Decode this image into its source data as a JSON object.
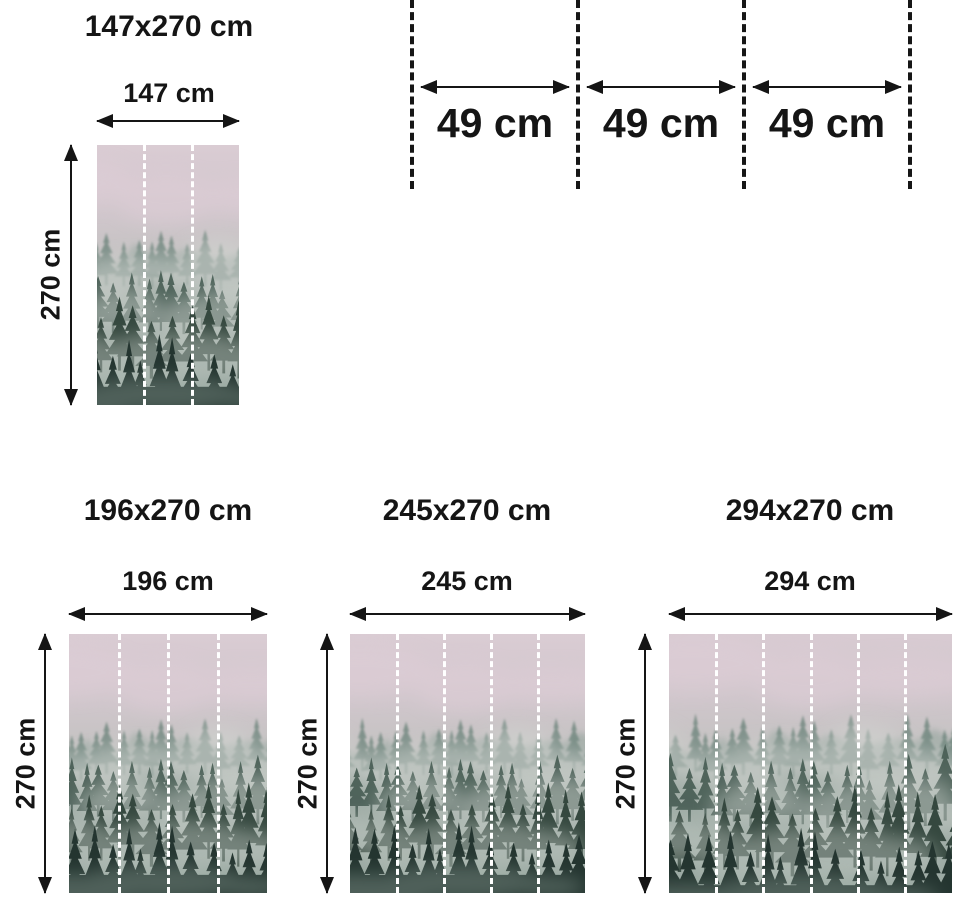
{
  "product_image": "foggy-mountain-forest-wall-mural",
  "sizes": [
    {
      "title": "147x270 cm",
      "width_label": "147 cm",
      "height_label": "270 cm",
      "panels": 3
    },
    {
      "title": "196x270 cm",
      "width_label": "196 cm",
      "height_label": "270 cm",
      "panels": 4
    },
    {
      "title": "245x270 cm",
      "width_label": "245 cm",
      "height_label": "270 cm",
      "panels": 5
    },
    {
      "title": "294x270 cm",
      "width_label": "294 cm",
      "height_label": "270 cm",
      "panels": 6
    }
  ],
  "panel_diagram": {
    "segments": [
      "49 cm",
      "49 cm",
      "49 cm"
    ]
  },
  "colors": {
    "text": "#151515",
    "arrow": "#151515",
    "fold_dash": "#161616",
    "panel_dash": "#ffffff",
    "fog_top": "#dccdd5",
    "fog_mid": "#c9cfca",
    "forest_mid": "#4b6057",
    "forest_dark": "#243530"
  }
}
